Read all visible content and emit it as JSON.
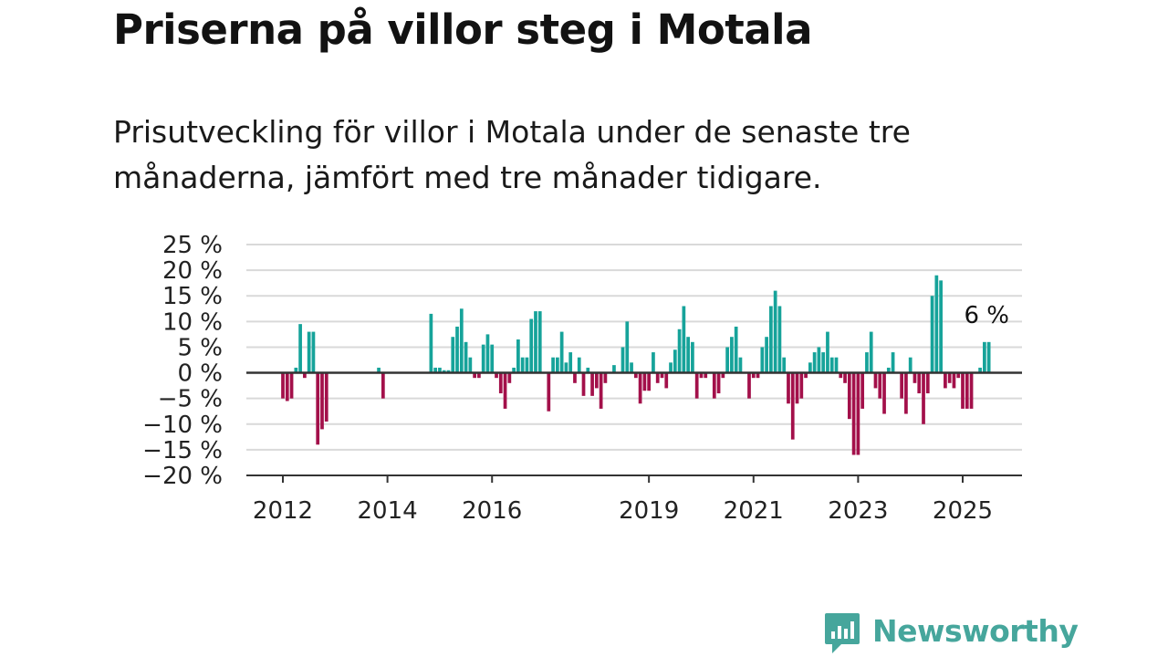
{
  "title": "Priserna på villor steg i Motala",
  "subtitle": "Prisutveckling för villor i Motala under de senaste tre månaderna, jämfört med tre månader tidigare.",
  "logo": {
    "text": "Newsworthy",
    "icon": "newsworthy-logo-icon",
    "color": "#46a69c"
  },
  "colors": {
    "positive": "#16a39a",
    "negative": "#a3104a",
    "grid": "#d9d9d9",
    "axis": "#333333"
  },
  "chart_data": {
    "type": "bar",
    "title": "Priserna på villor steg i Motala",
    "ylabel": "",
    "xlabel": "",
    "ylim": [
      -20,
      25
    ],
    "grid": true,
    "y_ticks": [
      25,
      20,
      15,
      10,
      5,
      0,
      -5,
      -10,
      -15,
      -20
    ],
    "y_tick_labels": [
      "25 %",
      "20 %",
      "15 %",
      "10 %",
      "5 %",
      "0 %",
      "−5 %",
      "−10 %",
      "−15 %",
      "−20 %"
    ],
    "x_ticks": [
      {
        "label": "2012",
        "date": "2012-01"
      },
      {
        "label": "2014",
        "date": "2014-01"
      },
      {
        "label": "2016",
        "date": "2016-01"
      },
      {
        "label": "2019",
        "date": "2019-01"
      },
      {
        "label": "2021",
        "date": "2021-01"
      },
      {
        "label": "2023",
        "date": "2023-01"
      },
      {
        "label": "2025",
        "date": "2025-01"
      }
    ],
    "annotation": {
      "text": "6 %",
      "date": "2025-06",
      "value": 6
    },
    "series": [
      {
        "points": [
          {
            "date": "2012-01",
            "value": -5
          },
          {
            "date": "2012-02",
            "value": -5.5
          },
          {
            "date": "2012-03",
            "value": -5
          },
          {
            "date": "2012-04",
            "value": 1
          },
          {
            "date": "2012-05",
            "value": 9.5
          },
          {
            "date": "2012-06",
            "value": -1
          },
          {
            "date": "2012-07",
            "value": 8
          },
          {
            "date": "2012-08",
            "value": 8
          },
          {
            "date": "2012-09",
            "value": -14
          },
          {
            "date": "2012-10",
            "value": -11
          },
          {
            "date": "2012-11",
            "value": -9.5
          },
          {
            "date": "2013-11",
            "value": 1
          },
          {
            "date": "2013-12",
            "value": -5
          },
          {
            "date": "2014-11",
            "value": 11.5
          },
          {
            "date": "2014-12",
            "value": 1
          },
          {
            "date": "2015-01",
            "value": 1
          },
          {
            "date": "2015-02",
            "value": 0.5
          },
          {
            "date": "2015-03",
            "value": 0.5
          },
          {
            "date": "2015-04",
            "value": 7
          },
          {
            "date": "2015-05",
            "value": 9
          },
          {
            "date": "2015-06",
            "value": 12.5
          },
          {
            "date": "2015-07",
            "value": 6
          },
          {
            "date": "2015-08",
            "value": 3
          },
          {
            "date": "2015-09",
            "value": -1
          },
          {
            "date": "2015-10",
            "value": -1
          },
          {
            "date": "2015-11",
            "value": 5.5
          },
          {
            "date": "2015-12",
            "value": 7.5
          },
          {
            "date": "2016-01",
            "value": 5.5
          },
          {
            "date": "2016-02",
            "value": -1
          },
          {
            "date": "2016-03",
            "value": -4
          },
          {
            "date": "2016-04",
            "value": -7
          },
          {
            "date": "2016-05",
            "value": -2
          },
          {
            "date": "2016-06",
            "value": 1
          },
          {
            "date": "2016-07",
            "value": 6.5
          },
          {
            "date": "2016-08",
            "value": 3
          },
          {
            "date": "2016-09",
            "value": 3
          },
          {
            "date": "2016-10",
            "value": 10.5
          },
          {
            "date": "2016-11",
            "value": 12
          },
          {
            "date": "2016-12",
            "value": 12
          },
          {
            "date": "2017-02",
            "value": -7.5
          },
          {
            "date": "2017-03",
            "value": 3
          },
          {
            "date": "2017-04",
            "value": 3
          },
          {
            "date": "2017-05",
            "value": 8
          },
          {
            "date": "2017-06",
            "value": 2
          },
          {
            "date": "2017-07",
            "value": 4
          },
          {
            "date": "2017-08",
            "value": -2
          },
          {
            "date": "2017-09",
            "value": 3
          },
          {
            "date": "2017-10",
            "value": -4.5
          },
          {
            "date": "2017-11",
            "value": 1
          },
          {
            "date": "2017-12",
            "value": -4.5
          },
          {
            "date": "2018-01",
            "value": -3
          },
          {
            "date": "2018-02",
            "value": -7
          },
          {
            "date": "2018-03",
            "value": -2
          },
          {
            "date": "2018-05",
            "value": 1.5
          },
          {
            "date": "2018-07",
            "value": 5
          },
          {
            "date": "2018-08",
            "value": 10
          },
          {
            "date": "2018-09",
            "value": 2
          },
          {
            "date": "2018-10",
            "value": -1
          },
          {
            "date": "2018-11",
            "value": -6
          },
          {
            "date": "2018-12",
            "value": -3.5
          },
          {
            "date": "2019-01",
            "value": -3.5
          },
          {
            "date": "2019-02",
            "value": 4
          },
          {
            "date": "2019-03",
            "value": -2
          },
          {
            "date": "2019-04",
            "value": -1
          },
          {
            "date": "2019-05",
            "value": -3
          },
          {
            "date": "2019-06",
            "value": 2
          },
          {
            "date": "2019-07",
            "value": 4.5
          },
          {
            "date": "2019-08",
            "value": 8.5
          },
          {
            "date": "2019-09",
            "value": 13
          },
          {
            "date": "2019-10",
            "value": 7
          },
          {
            "date": "2019-11",
            "value": 6
          },
          {
            "date": "2019-12",
            "value": -5
          },
          {
            "date": "2020-01",
            "value": -1
          },
          {
            "date": "2020-02",
            "value": -1
          },
          {
            "date": "2020-04",
            "value": -5
          },
          {
            "date": "2020-05",
            "value": -4
          },
          {
            "date": "2020-06",
            "value": -1
          },
          {
            "date": "2020-07",
            "value": 5
          },
          {
            "date": "2020-08",
            "value": 7
          },
          {
            "date": "2020-09",
            "value": 9
          },
          {
            "date": "2020-10",
            "value": 3
          },
          {
            "date": "2020-12",
            "value": -5
          },
          {
            "date": "2021-01",
            "value": -1
          },
          {
            "date": "2021-02",
            "value": -1
          },
          {
            "date": "2021-03",
            "value": 5
          },
          {
            "date": "2021-04",
            "value": 7
          },
          {
            "date": "2021-05",
            "value": 13
          },
          {
            "date": "2021-06",
            "value": 16
          },
          {
            "date": "2021-07",
            "value": 13
          },
          {
            "date": "2021-08",
            "value": 3
          },
          {
            "date": "2021-09",
            "value": -6
          },
          {
            "date": "2021-10",
            "value": -13
          },
          {
            "date": "2021-11",
            "value": -6
          },
          {
            "date": "2021-12",
            "value": -5
          },
          {
            "date": "2022-01",
            "value": -1
          },
          {
            "date": "2022-02",
            "value": 2
          },
          {
            "date": "2022-03",
            "value": 4
          },
          {
            "date": "2022-04",
            "value": 5
          },
          {
            "date": "2022-05",
            "value": 4
          },
          {
            "date": "2022-06",
            "value": 8
          },
          {
            "date": "2022-07",
            "value": 3
          },
          {
            "date": "2022-08",
            "value": 3
          },
          {
            "date": "2022-09",
            "value": -1
          },
          {
            "date": "2022-10",
            "value": -2
          },
          {
            "date": "2022-11",
            "value": -9
          },
          {
            "date": "2022-12",
            "value": -16
          },
          {
            "date": "2023-01",
            "value": -16
          },
          {
            "date": "2023-02",
            "value": -7
          },
          {
            "date": "2023-03",
            "value": 4
          },
          {
            "date": "2023-04",
            "value": 8
          },
          {
            "date": "2023-05",
            "value": -3
          },
          {
            "date": "2023-06",
            "value": -5
          },
          {
            "date": "2023-07",
            "value": -8
          },
          {
            "date": "2023-08",
            "value": 1
          },
          {
            "date": "2023-09",
            "value": 4
          },
          {
            "date": "2023-11",
            "value": -5
          },
          {
            "date": "2023-12",
            "value": -8
          },
          {
            "date": "2024-01",
            "value": 3
          },
          {
            "date": "2024-02",
            "value": -2
          },
          {
            "date": "2024-03",
            "value": -4
          },
          {
            "date": "2024-04",
            "value": -10
          },
          {
            "date": "2024-05",
            "value": -4
          },
          {
            "date": "2024-06",
            "value": 15
          },
          {
            "date": "2024-07",
            "value": 19
          },
          {
            "date": "2024-08",
            "value": 18
          },
          {
            "date": "2024-09",
            "value": -3
          },
          {
            "date": "2024-10",
            "value": -2
          },
          {
            "date": "2024-11",
            "value": -3
          },
          {
            "date": "2024-12",
            "value": -1
          },
          {
            "date": "2025-01",
            "value": -7
          },
          {
            "date": "2025-02",
            "value": -7
          },
          {
            "date": "2025-03",
            "value": -7
          },
          {
            "date": "2025-05",
            "value": 1
          },
          {
            "date": "2025-06",
            "value": 6
          },
          {
            "date": "2025-07",
            "value": 6
          }
        ]
      }
    ]
  }
}
